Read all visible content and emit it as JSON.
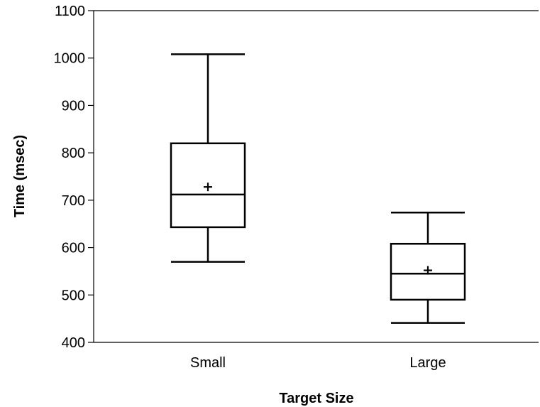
{
  "chart_data": {
    "type": "boxplot",
    "xlabel": "Target Size",
    "ylabel": "Time (msec)",
    "ylim": [
      400,
      1100
    ],
    "yticks": [
      400,
      500,
      600,
      700,
      800,
      900,
      1000,
      1100
    ],
    "categories": [
      "Small",
      "Large"
    ],
    "boxes": [
      {
        "category": "Small",
        "whisker_low": 570,
        "q1": 643,
        "median": 712,
        "q3": 820,
        "whisker_high": 1008,
        "mean": 728
      },
      {
        "category": "Large",
        "whisker_low": 441,
        "q1": 490,
        "median": 545,
        "q3": 608,
        "whisker_high": 674,
        "mean": 552
      }
    ],
    "grid": false,
    "legend": "none"
  }
}
